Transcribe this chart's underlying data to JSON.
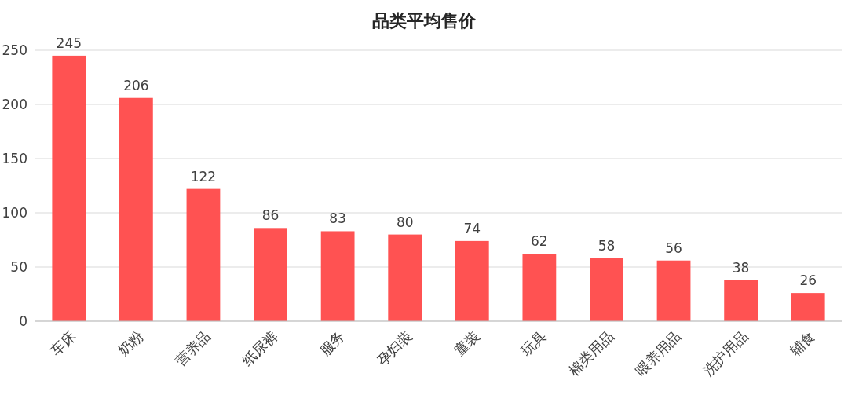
{
  "chart_data": {
    "type": "bar",
    "title": "品类平均售价",
    "categories": [
      "车床",
      "奶粉",
      "营养品",
      "纸尿裤",
      "服务",
      "孕妇装",
      "童装",
      "玩具",
      "棉类用品",
      "喂养用品",
      "洗护用品",
      "辅食"
    ],
    "values": [
      245,
      206,
      122,
      86,
      83,
      80,
      74,
      62,
      58,
      56,
      38,
      26
    ],
    "color": "#ff5252",
    "ylim": [
      0,
      250
    ],
    "yticks": [
      0,
      50,
      100,
      150,
      200,
      250
    ],
    "grid": "y",
    "data_labels": true
  }
}
